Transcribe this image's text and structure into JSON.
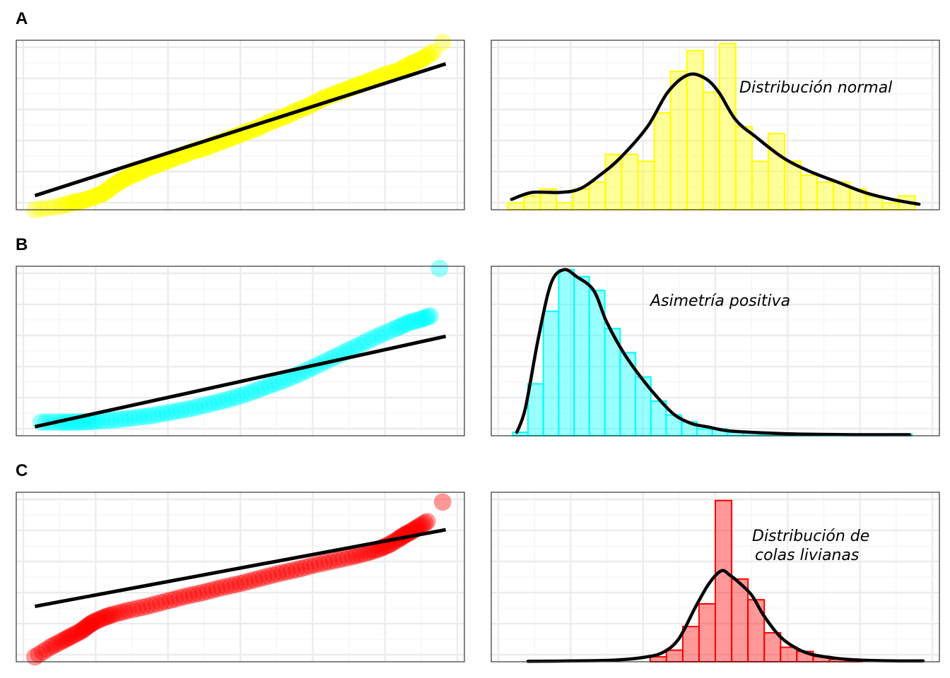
{
  "chart_data": [
    {
      "id": "A-qq",
      "tag": "A",
      "type": "scatter",
      "subtype": "qq-plot",
      "color": "#FFFF00",
      "axes_labels_shown": false,
      "grid": true,
      "xlim": [
        -3.6,
        3.6
      ],
      "ylim": [
        -3.3,
        3.9
      ],
      "x": [
        -3.3,
        -2.9,
        -2.7,
        -2.6,
        -2.45,
        -2.3,
        -2.2,
        -2.1,
        -2.0,
        -1.9,
        -1.8,
        -1.65,
        -1.5,
        -1.35,
        -1.2,
        -1.05,
        -0.9,
        -0.75,
        -0.6,
        -0.45,
        -0.3,
        -0.15,
        0.0,
        0.15,
        0.3,
        0.45,
        0.6,
        0.75,
        0.9,
        1.05,
        1.2,
        1.35,
        1.5,
        1.65,
        1.8,
        1.95,
        2.1,
        2.25,
        2.4,
        2.55,
        2.65,
        2.75,
        2.85,
        2.95,
        3.1,
        3.25
      ],
      "y": [
        -3.3,
        -3.15,
        -3.0,
        -2.95,
        -2.85,
        -2.7,
        -2.6,
        -2.4,
        -2.2,
        -2.05,
        -1.9,
        -1.75,
        -1.55,
        -1.4,
        -1.25,
        -1.1,
        -0.95,
        -0.8,
        -0.7,
        -0.55,
        -0.4,
        -0.25,
        -0.1,
        0.05,
        0.2,
        0.4,
        0.55,
        0.7,
        0.9,
        1.05,
        1.25,
        1.45,
        1.6,
        1.75,
        1.9,
        2.05,
        2.2,
        2.35,
        2.5,
        2.6,
        2.75,
        2.9,
        3.0,
        3.15,
        3.4,
        3.8
      ],
      "reference_line": {
        "x": [
          -3.3,
          3.3
        ],
        "y": [
          -2.7,
          2.9
        ]
      }
    },
    {
      "id": "A-hist",
      "tag": "A",
      "type": "bar",
      "subtype": "histogram+density",
      "color": "#FFFF00",
      "annotation": "Distribución normal",
      "xlim": [
        -3.3,
        3.3
      ],
      "ylim": [
        0,
        24.5
      ],
      "bins": [
        [
          -3.06,
          -2.82,
          1
        ],
        [
          -2.82,
          -2.58,
          2
        ],
        [
          -2.58,
          -2.34,
          3
        ],
        [
          -2.34,
          -2.1,
          1
        ],
        [
          -2.1,
          -1.86,
          3
        ],
        [
          -1.86,
          -1.62,
          4
        ],
        [
          -1.62,
          -1.38,
          8
        ],
        [
          -1.38,
          -1.14,
          8
        ],
        [
          -1.14,
          -0.9,
          7
        ],
        [
          -0.9,
          -0.66,
          14
        ],
        [
          -0.66,
          -0.42,
          20
        ],
        [
          -0.42,
          -0.18,
          23
        ],
        [
          -0.18,
          0.06,
          17
        ],
        [
          0.06,
          0.3,
          24
        ],
        [
          0.3,
          0.54,
          12
        ],
        [
          0.54,
          0.78,
          7
        ],
        [
          0.78,
          1.02,
          11
        ],
        [
          1.02,
          1.26,
          7
        ],
        [
          1.26,
          1.5,
          5
        ],
        [
          1.5,
          1.74,
          4
        ],
        [
          1.74,
          1.98,
          4
        ],
        [
          1.98,
          2.22,
          3
        ],
        [
          2.22,
          2.46,
          2
        ],
        [
          2.46,
          2.7,
          1
        ],
        [
          2.7,
          2.94,
          2
        ]
      ],
      "density": {
        "x": [
          -3.0,
          -2.7,
          -2.3,
          -2.0,
          -1.7,
          -1.4,
          -1.0,
          -0.7,
          -0.4,
          -0.15,
          0.05,
          0.3,
          0.6,
          1.0,
          1.4,
          1.8,
          2.2,
          2.6,
          3.0
        ],
        "y": [
          1.5,
          2.5,
          2.5,
          3.0,
          5.0,
          7.5,
          12.0,
          17.0,
          19.5,
          19.0,
          17.0,
          13.0,
          10.5,
          7.5,
          5.5,
          4.0,
          2.5,
          1.5,
          0.8
        ]
      }
    },
    {
      "id": "B-qq",
      "tag": "B",
      "type": "scatter",
      "subtype": "qq-plot",
      "color": "#00FFFF",
      "axes_labels_shown": false,
      "grid": true,
      "xlim": [
        -3.6,
        3.6
      ],
      "ylim": [
        -1.4,
        6.1
      ],
      "x": [
        -3.2,
        -2.9,
        -2.7,
        -2.5,
        -2.3,
        -2.0,
        -1.7,
        -1.4,
        -1.1,
        -0.8,
        -0.5,
        -0.2,
        0.1,
        0.4,
        0.7,
        1.0,
        1.3,
        1.6,
        1.9,
        2.2,
        2.5,
        2.7,
        2.9,
        3.05,
        3.2
      ],
      "y": [
        -0.8,
        -0.8,
        -0.8,
        -0.78,
        -0.75,
        -0.7,
        -0.6,
        -0.5,
        -0.35,
        -0.2,
        0.0,
        0.2,
        0.45,
        0.75,
        1.05,
        1.4,
        1.8,
        2.2,
        2.6,
        3.0,
        3.35,
        3.6,
        3.75,
        3.9,
        6.0
      ],
      "reference_line": {
        "x": [
          -3.3,
          3.3
        ],
        "y": [
          -1.0,
          3.0
        ]
      }
    },
    {
      "id": "B-hist",
      "tag": "B",
      "type": "bar",
      "subtype": "histogram+density",
      "color": "#00FFFF",
      "annotation": "Asimetría positiva",
      "xlim": [
        -0.25,
        5.0
      ],
      "ylim": [
        0,
        49
      ],
      "bins": [
        [
          0.0,
          0.18,
          1
        ],
        [
          0.18,
          0.36,
          15
        ],
        [
          0.36,
          0.54,
          36
        ],
        [
          0.54,
          0.72,
          48
        ],
        [
          0.72,
          0.9,
          46
        ],
        [
          0.9,
          1.08,
          42
        ],
        [
          1.08,
          1.26,
          31
        ],
        [
          1.26,
          1.44,
          24
        ],
        [
          1.44,
          1.62,
          17
        ],
        [
          1.62,
          1.8,
          10
        ],
        [
          1.8,
          1.98,
          6
        ],
        [
          1.98,
          2.16,
          4
        ],
        [
          2.16,
          2.34,
          2
        ],
        [
          2.34,
          2.52,
          2
        ],
        [
          2.52,
          2.7,
          1
        ],
        [
          2.7,
          2.88,
          1
        ],
        [
          2.88,
          3.06,
          0.5
        ],
        [
          3.06,
          3.24,
          0.5
        ],
        [
          3.24,
          3.42,
          0.3
        ],
        [
          3.42,
          3.6,
          0.3
        ],
        [
          3.6,
          3.78,
          0.2
        ],
        [
          3.78,
          3.96,
          0.2
        ],
        [
          3.96,
          4.14,
          0.2
        ],
        [
          4.14,
          4.32,
          0.2
        ],
        [
          4.32,
          4.5,
          0.2
        ],
        [
          4.5,
          4.68,
          0.5
        ]
      ],
      "density": {
        "x": [
          0.05,
          0.15,
          0.3,
          0.45,
          0.6,
          0.75,
          0.95,
          1.1,
          1.3,
          1.5,
          1.7,
          1.9,
          2.1,
          2.3,
          2.5,
          2.8,
          3.2,
          3.6,
          4.0,
          4.4,
          4.65
        ],
        "y": [
          1,
          8,
          28,
          44,
          48,
          46,
          42,
          33,
          24,
          17,
          11,
          6,
          3.5,
          2.5,
          1.5,
          1.0,
          0.6,
          0.4,
          0.3,
          0.3,
          0.3
        ]
      }
    },
    {
      "id": "C-qq",
      "tag": "C",
      "type": "scatter",
      "subtype": "qq-plot",
      "color": "#FF0000",
      "axes_labels_shown": false,
      "grid": true,
      "xlim": [
        -3.6,
        3.6
      ],
      "ylim": [
        -5.2,
        5.2
      ],
      "x": [
        -3.3,
        -3.05,
        -2.85,
        -2.7,
        -2.55,
        -2.45,
        -2.35,
        -2.2,
        -2.05,
        -1.8,
        -1.5,
        -1.2,
        -0.9,
        -0.6,
        -0.3,
        0.0,
        0.3,
        0.6,
        0.9,
        1.2,
        1.5,
        1.8,
        2.05,
        2.25,
        2.4,
        2.55,
        2.65,
        2.75,
        2.85,
        3.0,
        3.25
      ],
      "y": [
        -4.9,
        -4.3,
        -3.9,
        -3.6,
        -3.3,
        -3.0,
        -2.75,
        -2.5,
        -2.3,
        -2.05,
        -1.8,
        -1.5,
        -1.2,
        -0.95,
        -0.65,
        -0.4,
        -0.1,
        0.2,
        0.45,
        0.75,
        1.0,
        1.25,
        1.5,
        1.75,
        2.0,
        2.35,
        2.6,
        2.8,
        3.05,
        3.4,
        4.6
      ],
      "reference_line": {
        "x": [
          -3.3,
          3.3
        ],
        "y": [
          -1.8,
          2.9
        ]
      }
    },
    {
      "id": "C-hist",
      "tag": "C",
      "type": "bar",
      "subtype": "histogram+density",
      "color": "#FF0000",
      "annotation": "Distribución de colas livianas",
      "xlim": [
        -5.5,
        5.5
      ],
      "ylim": [
        0,
        41
      ],
      "bins": [
        [
          -4.4,
          -4.0,
          0.3
        ],
        [
          -1.6,
          -1.2,
          1.2
        ],
        [
          -1.2,
          -0.8,
          2.8
        ],
        [
          -0.8,
          -0.4,
          8.5
        ],
        [
          -0.4,
          0.0,
          14
        ],
        [
          0.0,
          0.4,
          39
        ],
        [
          0.4,
          0.8,
          20
        ],
        [
          0.8,
          1.2,
          15
        ],
        [
          1.2,
          1.6,
          7
        ],
        [
          1.6,
          2.0,
          3.5
        ],
        [
          2.0,
          2.4,
          2.5
        ],
        [
          2.4,
          2.8,
          1.3
        ],
        [
          2.8,
          3.2,
          0.6
        ],
        [
          3.2,
          3.6,
          0.3
        ]
      ],
      "density": {
        "x": [
          -4.6,
          -3.5,
          -2.5,
          -1.8,
          -1.3,
          -0.9,
          -0.5,
          -0.15,
          0.15,
          0.35,
          0.6,
          0.9,
          1.2,
          1.6,
          2.0,
          2.4,
          3.0,
          3.6,
          4.4,
          5.1
        ],
        "y": [
          0.1,
          0.2,
          0.4,
          1.0,
          2.2,
          5.5,
          13,
          19,
          22,
          21,
          19,
          16,
          11,
          6,
          3.2,
          1.7,
          0.8,
          0.4,
          0.2,
          0.2
        ]
      }
    }
  ],
  "panel_tags": {
    "a": "A",
    "b": "B",
    "c": "C"
  }
}
